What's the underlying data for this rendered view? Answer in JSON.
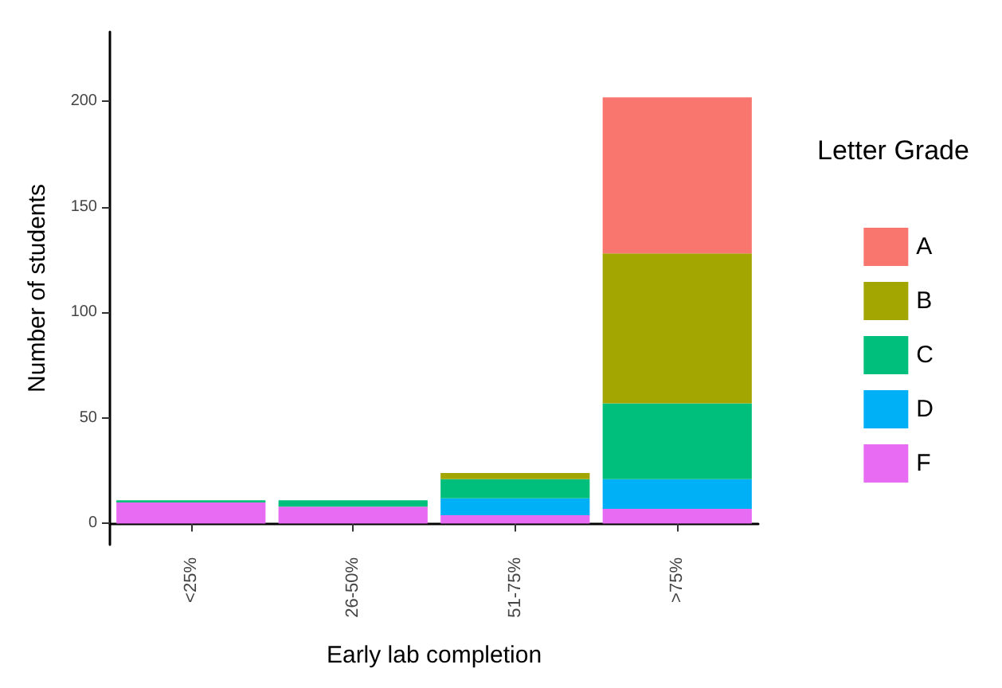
{
  "chart_data": {
    "type": "bar",
    "stacked": true,
    "xlabel": "Early lab completion",
    "ylabel": "Number of students",
    "legend_title": "Letter Grade",
    "legend": "right",
    "grid": false,
    "categories": [
      "<25%",
      "26-50%",
      "51-75%",
      ">75%"
    ],
    "ylim": [
      -10,
      233
    ],
    "yticks": [
      0,
      50,
      100,
      150,
      200
    ],
    "series": [
      {
        "name": "F",
        "color": "#e76bf3",
        "values": [
          10,
          8,
          4,
          7
        ]
      },
      {
        "name": "D",
        "color": "#00b0f6",
        "values": [
          0,
          0,
          8,
          14
        ]
      },
      {
        "name": "C",
        "color": "#00bf7d",
        "values": [
          1,
          3,
          9,
          36
        ]
      },
      {
        "name": "B",
        "color": "#a3a500",
        "values": [
          0,
          0,
          3,
          71
        ]
      },
      {
        "name": "A",
        "color": "#f8766d",
        "values": [
          0,
          0,
          0,
          74
        ]
      }
    ]
  }
}
